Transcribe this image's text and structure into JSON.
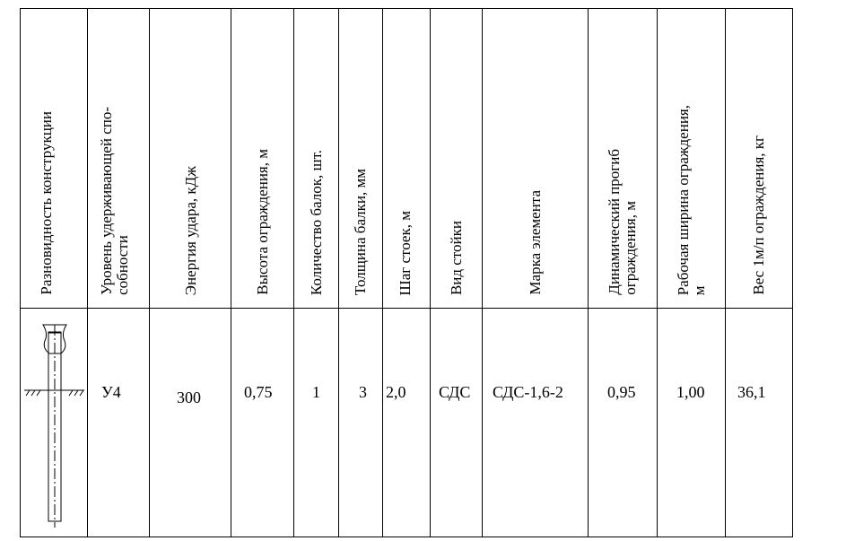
{
  "table": {
    "headers": [
      "Разновидность конструкции",
      "Уровень удерживающей спо-\nсобности",
      "Энергия удара, кДж",
      "Высота ограждения, м",
      "Количество балок, шт.",
      "Толщина балки, мм",
      "Шаг стоек, м",
      "Вид стойки",
      "Марка элемента",
      "Динамический прогиб\nограждения, м",
      "Рабочая ширина ограждения,\nм",
      "Вес 1м/п ограждения, кг"
    ],
    "row": {
      "construction_icon": "guardrail-post-diagram",
      "level": "У4",
      "energy": "300",
      "height": "0,75",
      "beams": "1",
      "thickness": "3",
      "post_step": "2,0",
      "post_type": "СДС",
      "element_mark": "СДС-1,6-2",
      "deflection": "0,95",
      "working_width": "1,00",
      "weight": "36,1"
    }
  }
}
